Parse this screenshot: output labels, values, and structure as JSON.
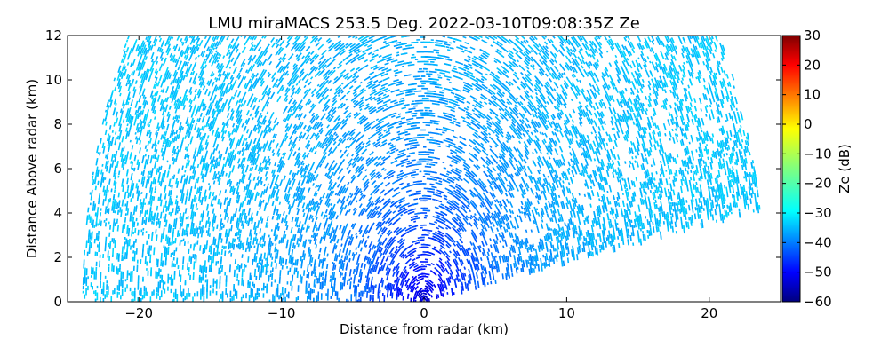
{
  "chart_data": {
    "type": "heatmap",
    "subtype": "radar RHI scan",
    "title": "LMU miraMACS 253.5 Deg. 2022-03-10T09:08:35Z  Ze",
    "xlabel": "Distance from radar (km)",
    "ylabel": "Distance Above radar  (km)",
    "xlim": [
      -25,
      25
    ],
    "ylim": [
      0,
      12
    ],
    "x_ticks": [
      "−20",
      "−10",
      "0",
      "10",
      "20"
    ],
    "x_tick_values": [
      -20,
      -10,
      0,
      10,
      20
    ],
    "y_ticks": [
      "0",
      "2",
      "4",
      "6",
      "8",
      "10",
      "12"
    ],
    "y_tick_values": [
      0,
      2,
      4,
      6,
      8,
      10,
      12
    ],
    "grid": false,
    "colorbar": {
      "label": "Ze (dB)",
      "colormap": "jet",
      "range": [
        -60,
        30
      ],
      "ticks": [
        "30",
        "20",
        "10",
        "0",
        "−10",
        "−20",
        "−30",
        "−40",
        "−50",
        "−60"
      ],
      "tick_values": [
        30,
        20,
        10,
        0,
        -10,
        -20,
        -30,
        -40,
        -50,
        -60
      ]
    },
    "field": {
      "radar_position_km": [
        0,
        0
      ],
      "max_range_km": 24,
      "min_elevation_left_deg": 0,
      "min_elevation_right_deg": 10,
      "ze_near_radar_db": -53,
      "ze_far_db": -31,
      "ze_falloff_scale_km": 5
    }
  },
  "colors": {
    "jet_stops": [
      "#00007f",
      "#0000ff",
      "#007fff",
      "#00ffff",
      "#7fff7f",
      "#ffff00",
      "#ff7f00",
      "#ff0000",
      "#7f0000"
    ]
  }
}
